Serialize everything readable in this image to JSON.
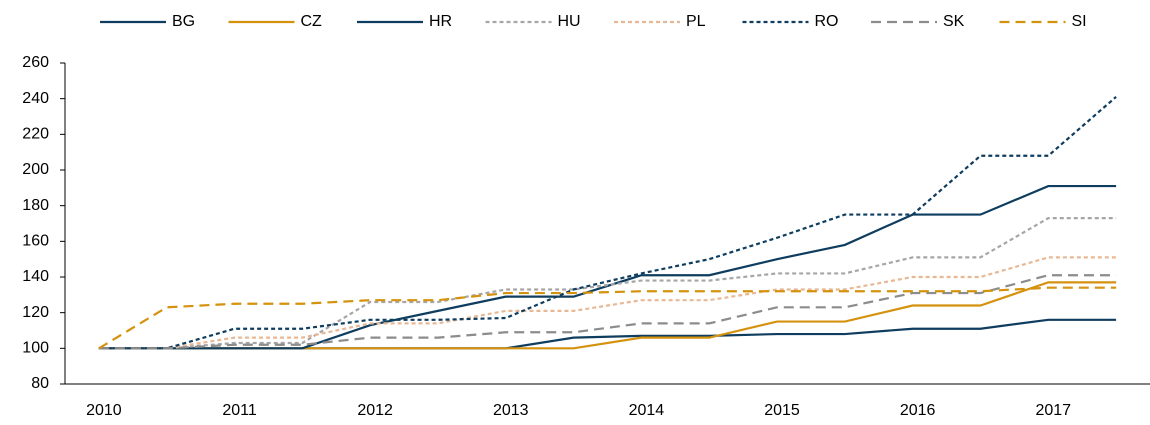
{
  "chart_data": {
    "type": "line",
    "categories": [
      "2010",
      null,
      "2011",
      null,
      "2012",
      null,
      "2013",
      null,
      "2014",
      null,
      "2015",
      null,
      "2016",
      null,
      "2017",
      null
    ],
    "ylim": [
      80,
      260
    ],
    "yticks": [
      80,
      100,
      120,
      140,
      160,
      180,
      200,
      220,
      240,
      260
    ],
    "legend": "top",
    "series": [
      {
        "name": "BG",
        "color": "#0e3d5f",
        "dash": "solid",
        "values": [
          100,
          100,
          100,
          100,
          100,
          100,
          100,
          106,
          107,
          107,
          108,
          108,
          111,
          111,
          116,
          116
        ]
      },
      {
        "name": "CZ",
        "color": "#d4920f",
        "dash": "solid",
        "values": [
          100,
          100,
          100,
          100,
          100,
          100,
          100,
          100,
          106,
          106,
          115,
          115,
          124,
          124,
          137,
          137
        ]
      },
      {
        "name": "HR",
        "color": "#0e3d5f",
        "dash": "solid",
        "values": [
          100,
          100,
          100,
          100,
          113,
          121,
          129,
          129,
          141,
          141,
          150,
          158,
          175,
          175,
          191,
          191
        ]
      },
      {
        "name": "HU",
        "color": "#a6a6a6",
        "dash": "dotted",
        "values": [
          100,
          100,
          103,
          103,
          126,
          126,
          133,
          133,
          138,
          138,
          142,
          142,
          151,
          151,
          173,
          173
        ]
      },
      {
        "name": "PL",
        "color": "#e8b894",
        "dash": "dotted",
        "values": [
          100,
          100,
          106,
          106,
          114,
          114,
          121,
          121,
          127,
          127,
          133,
          133,
          140,
          140,
          151,
          151
        ]
      },
      {
        "name": "RO",
        "color": "#0e3d5f",
        "dash": "dotted",
        "values": [
          100,
          100,
          111,
          111,
          116,
          116,
          117,
          133,
          142,
          150,
          162,
          175,
          175,
          208,
          208,
          241
        ]
      },
      {
        "name": "SK",
        "color": "#8c8c8c",
        "dash": "dashed",
        "values": [
          100,
          100,
          102,
          102,
          106,
          106,
          109,
          109,
          114,
          114,
          123,
          123,
          131,
          131,
          141,
          141
        ]
      },
      {
        "name": "SI",
        "color": "#d4920f",
        "dash": "dashed",
        "values": [
          100,
          123,
          125,
          125,
          127,
          127,
          131,
          131,
          132,
          132,
          132,
          132,
          132,
          132,
          134,
          134
        ]
      }
    ]
  }
}
